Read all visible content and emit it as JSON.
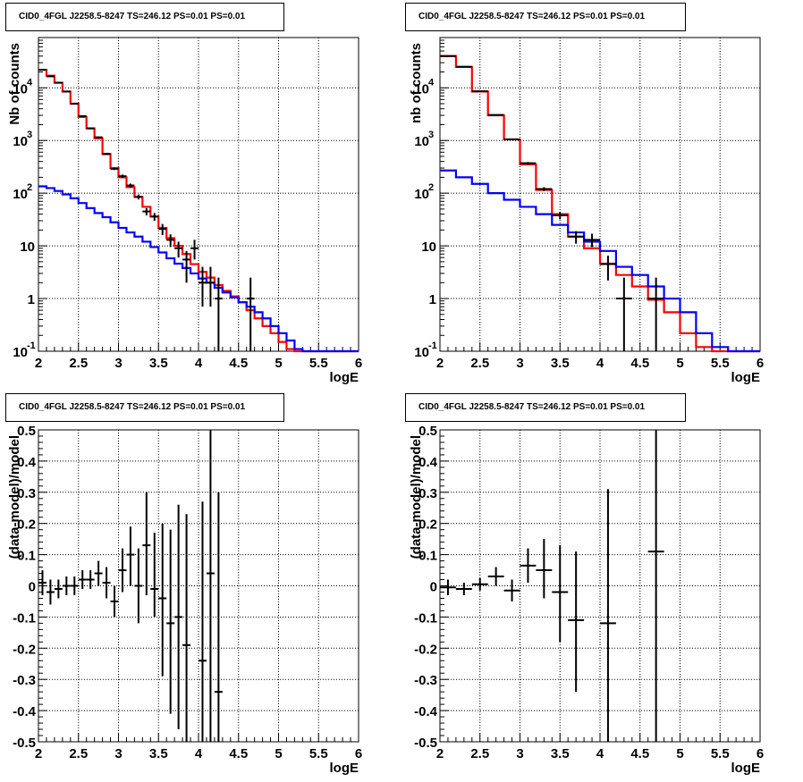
{
  "chart_data": [
    {
      "type": "line",
      "title": "CID0_4FGL J2258.5-8247 TS=246.12 PS=0.01 PS=0.01",
      "xlabel": "logE",
      "ylabel": "Nb of counts",
      "xlim": [
        2,
        6
      ],
      "ylim": [
        0.1,
        90000
      ],
      "yscale": "log",
      "grid": true,
      "x_ticks": [
        "2",
        "2.5",
        "3",
        "3.5",
        "4",
        "4.5",
        "5",
        "5.5",
        "6"
      ],
      "y_ticks": [
        {
          "v": 0.1,
          "t": "10",
          "exp": "-1"
        },
        {
          "v": 1,
          "t": "1"
        },
        {
          "v": 10,
          "t": "10"
        },
        {
          "v": 100,
          "t": "10",
          "exp": "2"
        },
        {
          "v": 1000,
          "t": "10",
          "exp": "3"
        },
        {
          "v": 10000,
          "t": "10",
          "exp": "4"
        }
      ],
      "series": [
        {
          "key": "total",
          "color": "#ff0000",
          "bins": [
            2,
            2.1,
            2.2,
            2.3,
            2.4,
            2.5,
            2.6,
            2.7,
            2.8,
            2.9,
            3.0,
            3.1,
            3.2,
            3.3,
            3.4,
            3.5,
            3.6,
            3.7,
            3.8,
            3.9,
            4.0,
            4.1,
            4.2,
            4.3,
            4.4,
            4.5,
            4.6,
            4.7,
            4.8,
            4.9,
            5.0,
            5.1,
            5.2,
            5.3,
            5.4,
            5.5,
            5.6,
            5.7,
            5.8,
            5.9,
            6.0
          ],
          "values": [
            22000,
            17000,
            12500,
            8500,
            5000,
            2800,
            1700,
            1100,
            550,
            300,
            200,
            130,
            85,
            55,
            36,
            22,
            14,
            10,
            7,
            4.5,
            3.2,
            2.5,
            1.8,
            1.4,
            1.1,
            0.85,
            0.6,
            0.42,
            0.3,
            0.22,
            0.15,
            0.11,
            0.1,
            0.1,
            0.1,
            0.1,
            0.1,
            0.1,
            0.1,
            0.1
          ]
        },
        {
          "key": "component",
          "color": "#0000ff",
          "bins": [
            2,
            2.1,
            2.2,
            2.3,
            2.4,
            2.5,
            2.6,
            2.7,
            2.8,
            2.9,
            3.0,
            3.1,
            3.2,
            3.3,
            3.4,
            3.5,
            3.6,
            3.7,
            3.8,
            3.9,
            4.0,
            4.1,
            4.2,
            4.3,
            4.4,
            4.5,
            4.6,
            4.7,
            4.8,
            4.9,
            5.0,
            5.1,
            5.2,
            5.3,
            5.4,
            5.5,
            5.6,
            5.7,
            5.8,
            5.9,
            6.0
          ],
          "values": [
            135,
            125,
            110,
            95,
            80,
            65,
            52,
            42,
            35,
            28,
            22,
            18,
            15,
            12,
            9.5,
            7.5,
            5.8,
            4.6,
            3.8,
            3.0,
            2.4,
            2.0,
            1.6,
            1.3,
            1.05,
            0.85,
            0.7,
            0.55,
            0.42,
            0.3,
            0.22,
            0.16,
            0.11,
            0.1,
            0.1,
            0.1,
            0.1,
            0.1,
            0.1,
            0.1
          ]
        }
      ],
      "points": [
        {
          "x": 2.05,
          "y": 22000,
          "xerr": 0.05,
          "ylo": 21800,
          "yhi": 22200
        },
        {
          "x": 2.15,
          "y": 16500,
          "xerr": 0.05,
          "ylo": 16300,
          "yhi": 16700
        },
        {
          "x": 2.25,
          "y": 12500,
          "xerr": 0.05,
          "ylo": 12300,
          "yhi": 12700
        },
        {
          "x": 2.35,
          "y": 8500,
          "xerr": 0.05,
          "ylo": 8400,
          "yhi": 8600
        },
        {
          "x": 2.45,
          "y": 5000,
          "xerr": 0.05,
          "ylo": 4930,
          "yhi": 5070
        },
        {
          "x": 2.55,
          "y": 2900,
          "xerr": 0.05,
          "ylo": 2850,
          "yhi": 2950
        },
        {
          "x": 2.65,
          "y": 1700,
          "xerr": 0.05,
          "ylo": 1660,
          "yhi": 1740
        },
        {
          "x": 2.75,
          "y": 1150,
          "xerr": 0.05,
          "ylo": 1120,
          "yhi": 1180
        },
        {
          "x": 2.85,
          "y": 560,
          "xerr": 0.05,
          "ylo": 540,
          "yhi": 580
        },
        {
          "x": 2.95,
          "y": 290,
          "xerr": 0.05,
          "ylo": 275,
          "yhi": 305
        },
        {
          "x": 3.05,
          "y": 210,
          "xerr": 0.05,
          "ylo": 195,
          "yhi": 225
        },
        {
          "x": 3.15,
          "y": 140,
          "xerr": 0.05,
          "ylo": 128,
          "yhi": 152
        },
        {
          "x": 3.25,
          "y": 85,
          "xerr": 0.05,
          "ylo": 76,
          "yhi": 94
        },
        {
          "x": 3.35,
          "y": 45,
          "xerr": 0.05,
          "ylo": 38,
          "yhi": 52
        },
        {
          "x": 3.45,
          "y": 36,
          "xerr": 0.05,
          "ylo": 30,
          "yhi": 42
        },
        {
          "x": 3.55,
          "y": 21,
          "xerr": 0.05,
          "ylo": 16,
          "yhi": 26
        },
        {
          "x": 3.65,
          "y": 13,
          "xerr": 0.05,
          "ylo": 9.5,
          "yhi": 16.5
        },
        {
          "x": 3.75,
          "y": 9,
          "xerr": 0.05,
          "ylo": 6,
          "yhi": 12
        },
        {
          "x": 3.85,
          "y": 5.5,
          "xerr": 0.05,
          "ylo": 2,
          "yhi": 8
        },
        {
          "x": 3.95,
          "y": 9,
          "xerr": 0.05,
          "ylo": 5.5,
          "yhi": 13
        },
        {
          "x": 4.05,
          "y": 2,
          "xerr": 0.05,
          "ylo": 0.7,
          "yhi": 4
        },
        {
          "x": 4.15,
          "y": 2,
          "xerr": 0.05,
          "ylo": 0.7,
          "yhi": 4
        },
        {
          "x": 4.25,
          "y": 1,
          "xerr": 0.05,
          "ylo": 0.1,
          "yhi": 2.5
        },
        {
          "x": 4.65,
          "y": 1,
          "xerr": 0.05,
          "ylo": 0.1,
          "yhi": 2.5
        }
      ]
    },
    {
      "type": "line",
      "title": "CID0_4FGL J2258.5-8247 TS=246.12 PS=0.01 PS=0.01",
      "xlabel": "logE",
      "ylabel": "nb of counts",
      "xlim": [
        2,
        6
      ],
      "ylim": [
        0.1,
        90000
      ],
      "yscale": "log",
      "grid": true,
      "x_ticks": [
        "2",
        "2.5",
        "3",
        "3.5",
        "4",
        "4.5",
        "5",
        "5.5",
        "6"
      ],
      "y_ticks": [
        {
          "v": 0.1,
          "t": "10",
          "exp": "-1"
        },
        {
          "v": 1,
          "t": "1"
        },
        {
          "v": 10,
          "t": "10"
        },
        {
          "v": 100,
          "t": "10",
          "exp": "2"
        },
        {
          "v": 1000,
          "t": "10",
          "exp": "3"
        },
        {
          "v": 10000,
          "t": "10",
          "exp": "4"
        }
      ],
      "series": [
        {
          "key": "total",
          "color": "#ff0000",
          "bins": [
            2,
            2.2,
            2.4,
            2.6,
            2.8,
            3.0,
            3.2,
            3.4,
            3.6,
            3.8,
            4.0,
            4.2,
            4.4,
            4.6,
            4.8,
            5.0,
            5.2,
            5.4,
            5.6,
            5.8,
            6.0
          ],
          "values": [
            40000,
            25000,
            8500,
            3000,
            1050,
            350,
            115,
            40,
            15,
            9,
            4.6,
            2.8,
            1.7,
            0.95,
            0.55,
            0.22,
            0.12,
            0.1,
            0.1,
            0.1
          ]
        },
        {
          "key": "component",
          "color": "#0000ff",
          "bins": [
            2,
            2.2,
            2.4,
            2.6,
            2.8,
            3.0,
            3.2,
            3.4,
            3.6,
            3.8,
            4.0,
            4.2,
            4.4,
            4.6,
            4.8,
            5.0,
            5.2,
            5.4,
            5.6,
            5.8,
            6.0
          ],
          "values": [
            270,
            200,
            150,
            100,
            75,
            55,
            40,
            25,
            18,
            12,
            8,
            4,
            2.8,
            1.7,
            1.0,
            0.55,
            0.22,
            0.12,
            0.1,
            0.1
          ]
        }
      ],
      "points": [
        {
          "x": 2.1,
          "y": 40000,
          "xerr": 0.1,
          "ylo": 39700,
          "yhi": 40300
        },
        {
          "x": 2.3,
          "y": 25000,
          "xerr": 0.1,
          "ylo": 24700,
          "yhi": 25300
        },
        {
          "x": 2.5,
          "y": 8600,
          "xerr": 0.1,
          "ylo": 8450,
          "yhi": 8750
        },
        {
          "x": 2.7,
          "y": 3050,
          "xerr": 0.1,
          "ylo": 2990,
          "yhi": 3110
        },
        {
          "x": 2.9,
          "y": 1050,
          "xerr": 0.1,
          "ylo": 1020,
          "yhi": 1080
        },
        {
          "x": 3.1,
          "y": 370,
          "xerr": 0.1,
          "ylo": 350,
          "yhi": 390
        },
        {
          "x": 3.3,
          "y": 120,
          "xerr": 0.1,
          "ylo": 110,
          "yhi": 130
        },
        {
          "x": 3.5,
          "y": 38,
          "xerr": 0.1,
          "ylo": 32,
          "yhi": 44
        },
        {
          "x": 3.7,
          "y": 15,
          "xerr": 0.1,
          "ylo": 11,
          "yhi": 19
        },
        {
          "x": 3.9,
          "y": 13,
          "xerr": 0.1,
          "ylo": 9.5,
          "yhi": 17
        },
        {
          "x": 4.1,
          "y": 4.5,
          "xerr": 0.1,
          "ylo": 2.2,
          "yhi": 6.5
        },
        {
          "x": 4.3,
          "y": 1,
          "xerr": 0.1,
          "ylo": 0.1,
          "yhi": 2.5
        },
        {
          "x": 4.7,
          "y": 1,
          "xerr": 0.1,
          "ylo": 0.1,
          "yhi": 2.5
        }
      ]
    },
    {
      "type": "scatter",
      "title": "CID0_4FGL J2258.5-8247 TS=246.12 PS=0.01 PS=0.01",
      "xlabel": "logE",
      "ylabel": "(data-model)/model",
      "xlim": [
        2,
        6
      ],
      "ylim": [
        -0.5,
        0.5
      ],
      "grid": true,
      "x_ticks": [
        "2",
        "2.5",
        "3",
        "3.5",
        "4",
        "4.5",
        "5",
        "5.5",
        "6"
      ],
      "y_ticks": [
        "-0.5",
        "-0.4",
        "-0.3",
        "-0.2",
        "-0.1",
        "0",
        "0.1",
        "0.2",
        "0.3",
        "0.4",
        "0.5"
      ],
      "points": [
        {
          "x": 2.05,
          "y": 0.01,
          "xerr": 0.05,
          "ylo": -0.03,
          "yhi": 0.05
        },
        {
          "x": 2.15,
          "y": -0.02,
          "xerr": 0.05,
          "ylo": -0.06,
          "yhi": 0.02
        },
        {
          "x": 2.25,
          "y": -0.01,
          "xerr": 0.05,
          "ylo": -0.04,
          "yhi": 0.02
        },
        {
          "x": 2.35,
          "y": 0.0,
          "xerr": 0.05,
          "ylo": -0.03,
          "yhi": 0.03
        },
        {
          "x": 2.45,
          "y": 0.0,
          "xerr": 0.05,
          "ylo": -0.03,
          "yhi": 0.03
        },
        {
          "x": 2.55,
          "y": 0.02,
          "xerr": 0.05,
          "ylo": -0.01,
          "yhi": 0.05
        },
        {
          "x": 2.65,
          "y": 0.02,
          "xerr": 0.05,
          "ylo": -0.01,
          "yhi": 0.05
        },
        {
          "x": 2.75,
          "y": 0.04,
          "xerr": 0.05,
          "ylo": 0.0,
          "yhi": 0.08
        },
        {
          "x": 2.85,
          "y": 0.01,
          "xerr": 0.05,
          "ylo": -0.04,
          "yhi": 0.06
        },
        {
          "x": 2.95,
          "y": -0.05,
          "xerr": 0.05,
          "ylo": -0.1,
          "yhi": 0.0
        },
        {
          "x": 3.05,
          "y": 0.05,
          "xerr": 0.05,
          "ylo": -0.02,
          "yhi": 0.12
        },
        {
          "x": 3.15,
          "y": 0.1,
          "xerr": 0.05,
          "ylo": 0.0,
          "yhi": 0.19
        },
        {
          "x": 3.25,
          "y": 0.0,
          "xerr": 0.05,
          "ylo": -0.12,
          "yhi": 0.12
        },
        {
          "x": 3.35,
          "y": 0.13,
          "xerr": 0.05,
          "ylo": -0.03,
          "yhi": 0.3
        },
        {
          "x": 3.45,
          "y": -0.01,
          "xerr": 0.05,
          "ylo": -0.1,
          "yhi": 0.17
        },
        {
          "x": 3.55,
          "y": -0.04,
          "xerr": 0.05,
          "ylo": -0.29,
          "yhi": 0.2
        },
        {
          "x": 3.65,
          "y": -0.12,
          "xerr": 0.05,
          "ylo": -0.41,
          "yhi": 0.18
        },
        {
          "x": 3.75,
          "y": -0.1,
          "xerr": 0.05,
          "ylo": -0.46,
          "yhi": 0.26
        },
        {
          "x": 3.85,
          "y": -0.19,
          "xerr": 0.05,
          "ylo": -0.5,
          "yhi": 0.23
        },
        {
          "x": 4.05,
          "y": -0.24,
          "xerr": 0.05,
          "ylo": -0.5,
          "yhi": 0.27
        },
        {
          "x": 4.15,
          "y": 0.04,
          "xerr": 0.05,
          "ylo": -0.5,
          "yhi": 0.5
        },
        {
          "x": 4.25,
          "y": -0.34,
          "xerr": 0.05,
          "ylo": -0.5,
          "yhi": 0.3
        }
      ]
    },
    {
      "type": "scatter",
      "title": "CID0_4FGL J2258.5-8247 TS=246.12 PS=0.01 PS=0.01",
      "xlabel": "logE",
      "ylabel": "(data-model)/model",
      "xlim": [
        2,
        6
      ],
      "ylim": [
        -0.5,
        0.5
      ],
      "grid": true,
      "x_ticks": [
        "2",
        "2.5",
        "3",
        "3.5",
        "4",
        "4.5",
        "5",
        "5.5",
        "6"
      ],
      "y_ticks": [
        "-0.5",
        "-0.4",
        "-0.3",
        "-0.2",
        "-0.1",
        "0",
        "0.1",
        "0.2",
        "0.3",
        "0.4",
        "0.5"
      ],
      "points": [
        {
          "x": 2.1,
          "y": -0.005,
          "xerr": 0.1,
          "ylo": -0.03,
          "yhi": 0.02
        },
        {
          "x": 2.3,
          "y": -0.01,
          "xerr": 0.1,
          "ylo": -0.03,
          "yhi": 0.01
        },
        {
          "x": 2.5,
          "y": 0.005,
          "xerr": 0.1,
          "ylo": -0.015,
          "yhi": 0.025
        },
        {
          "x": 2.7,
          "y": 0.03,
          "xerr": 0.1,
          "ylo": 0.0,
          "yhi": 0.06
        },
        {
          "x": 2.9,
          "y": -0.015,
          "xerr": 0.1,
          "ylo": -0.05,
          "yhi": 0.02
        },
        {
          "x": 3.1,
          "y": 0.065,
          "xerr": 0.1,
          "ylo": 0.01,
          "yhi": 0.12
        },
        {
          "x": 3.3,
          "y": 0.05,
          "xerr": 0.1,
          "ylo": -0.04,
          "yhi": 0.15
        },
        {
          "x": 3.5,
          "y": -0.02,
          "xerr": 0.1,
          "ylo": -0.18,
          "yhi": 0.13
        },
        {
          "x": 3.7,
          "y": -0.11,
          "xerr": 0.1,
          "ylo": -0.34,
          "yhi": 0.11
        },
        {
          "x": 4.1,
          "y": -0.12,
          "xerr": 0.1,
          "ylo": -0.5,
          "yhi": 0.31
        },
        {
          "x": 4.7,
          "y": 0.11,
          "xerr": 0.1,
          "ylo": -0.5,
          "yhi": 0.5
        }
      ]
    }
  ]
}
